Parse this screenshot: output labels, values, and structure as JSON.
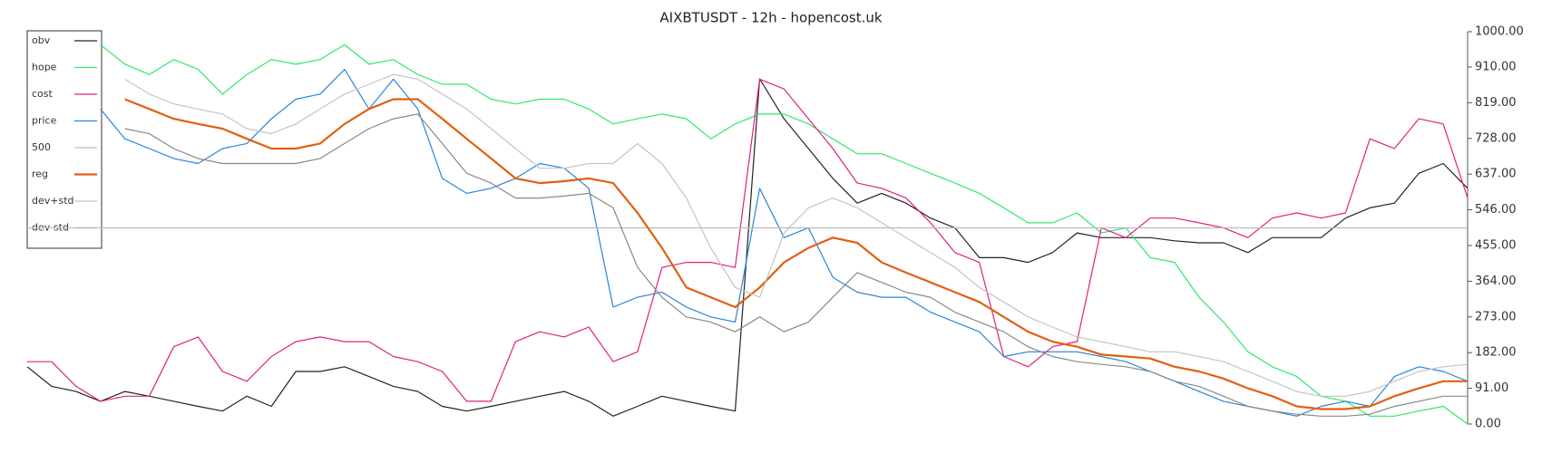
{
  "chart_data": {
    "type": "line",
    "title": "AIXBTUSDT - 12h - hopencost.uk",
    "ylim": [
      0,
      1000
    ],
    "yticks": [
      {
        "value": 0,
        "label": "0.00"
      },
      {
        "value": 91,
        "label": "91.00"
      },
      {
        "value": 182,
        "label": "182.00"
      },
      {
        "value": 273,
        "label": "273.00"
      },
      {
        "value": 364,
        "label": "364.00"
      },
      {
        "value": 455,
        "label": "455.00"
      },
      {
        "value": 546,
        "label": "546.00"
      },
      {
        "value": 637,
        "label": "637.00"
      },
      {
        "value": 728,
        "label": "728.00"
      },
      {
        "value": 819,
        "label": "819.00"
      },
      {
        "value": 910,
        "label": "910.00"
      },
      {
        "value": 1000,
        "label": "1000.00"
      }
    ],
    "legend": "upper-left",
    "series": [
      {
        "name": "obv",
        "color": "#222222",
        "width": 1.2,
        "values": [
          146,
          96,
          83,
          58,
          83,
          71,
          58,
          45,
          33,
          71,
          45,
          134,
          134,
          146,
          121,
          96,
          83,
          45,
          33,
          45,
          58,
          71,
          83,
          58,
          20,
          45,
          71,
          58,
          45,
          33,
          880,
          778,
          702,
          626,
          563,
          588,
          563,
          525,
          500,
          424,
          424,
          412,
          437,
          487,
          475,
          475,
          475,
          467,
          462,
          462,
          437,
          475,
          475,
          475,
          525,
          551,
          563,
          639,
          664,
          601
        ]
      },
      {
        "name": "hope",
        "color": "#2ee86a",
        "width": 1.2,
        "values": [
          null,
          null,
          null,
          967,
          917,
          891,
          929,
          904,
          841,
          891,
          929,
          917,
          929,
          967,
          917,
          929,
          891,
          866,
          866,
          828,
          816,
          828,
          828,
          803,
          765,
          778,
          790,
          778,
          727,
          765,
          790,
          790,
          765,
          727,
          689,
          689,
          664,
          639,
          614,
          588,
          551,
          513,
          513,
          538,
          487,
          500,
          424,
          412,
          323,
          260,
          184,
          146,
          121,
          71,
          58,
          20,
          20,
          33,
          45,
          0
        ]
      },
      {
        "name": "cost",
        "color": "#e0207f",
        "width": 1.2,
        "values": [
          159,
          159,
          96,
          58,
          71,
          71,
          197,
          222,
          134,
          109,
          172,
          210,
          222,
          210,
          210,
          172,
          159,
          134,
          58,
          58,
          210,
          235,
          222,
          247,
          159,
          184,
          399,
          412,
          412,
          399,
          879,
          854,
          778,
          702,
          614,
          601,
          576,
          513,
          437,
          412,
          172,
          146,
          197,
          210,
          500,
          475,
          525,
          525,
          513,
          500,
          475,
          525,
          538,
          525,
          538,
          727,
          702,
          778,
          765,
          576
        ]
      },
      {
        "name": "price",
        "color": "#2a84d8",
        "width": 1.2,
        "values": [
          null,
          null,
          null,
          803,
          727,
          702,
          677,
          664,
          702,
          715,
          778,
          828,
          841,
          904,
          803,
          879,
          803,
          626,
          588,
          601,
          626,
          664,
          652,
          601,
          298,
          323,
          336,
          298,
          273,
          260,
          601,
          475,
          500,
          374,
          336,
          323,
          323,
          285,
          260,
          235,
          172,
          184,
          184,
          184,
          172,
          159,
          134,
          109,
          83,
          58,
          45,
          33,
          20,
          45,
          58,
          45,
          121,
          146,
          134,
          109
        ]
      },
      {
        "name": "500",
        "color": "#bbbbbb",
        "width": 1.2,
        "values": [
          500,
          500,
          500,
          500,
          500,
          500,
          500,
          500,
          500,
          500,
          500,
          500,
          500,
          500,
          500,
          500,
          500,
          500,
          500,
          500,
          500,
          500,
          500,
          500,
          500,
          500,
          500,
          500,
          500,
          500,
          500,
          500,
          500,
          500,
          500,
          500,
          500,
          500,
          500,
          500,
          500,
          500,
          500,
          500,
          500,
          500,
          500,
          500,
          500,
          500,
          500,
          500,
          500,
          500,
          500,
          500,
          500,
          500,
          500,
          500
        ]
      },
      {
        "name": "reg",
        "color": "#e06010",
        "width": 2.2,
        "values": [
          null,
          null,
          null,
          null,
          828,
          803,
          778,
          765,
          753,
          727,
          702,
          702,
          715,
          765,
          803,
          828,
          828,
          778,
          727,
          677,
          626,
          614,
          619,
          626,
          614,
          538,
          449,
          348,
          323,
          298,
          348,
          412,
          449,
          475,
          462,
          412,
          386,
          361,
          336,
          311,
          273,
          235,
          210,
          197,
          177,
          172,
          167,
          146,
          134,
          116,
          91,
          71,
          45,
          38,
          38,
          45,
          71,
          91,
          109,
          109
        ]
      },
      {
        "name": "dev+std",
        "color": "#c4c4c4",
        "width": 1.2,
        "values": [
          null,
          null,
          null,
          null,
          879,
          841,
          816,
          803,
          790,
          753,
          740,
          765,
          803,
          841,
          866,
          891,
          879,
          841,
          803,
          753,
          702,
          652,
          652,
          664,
          664,
          715,
          664,
          576,
          449,
          348,
          323,
          487,
          551,
          576,
          551,
          513,
          475,
          437,
          399,
          348,
          311,
          273,
          247,
          222,
          210,
          197,
          184,
          184,
          172,
          159,
          134,
          109,
          83,
          71,
          71,
          83,
          109,
          134,
          146,
          152
        ]
      },
      {
        "name": "dev-std",
        "color": "#888888",
        "width": 1.2,
        "values": [
          null,
          null,
          null,
          null,
          753,
          740,
          702,
          677,
          664,
          664,
          664,
          664,
          677,
          715,
          753,
          778,
          790,
          715,
          639,
          614,
          576,
          576,
          581,
          588,
          551,
          399,
          323,
          273,
          260,
          235,
          273,
          235,
          260,
          323,
          386,
          361,
          336,
          323,
          285,
          260,
          235,
          197,
          172,
          159,
          152,
          146,
          134,
          109,
          96,
          71,
          45,
          33,
          25,
          20,
          20,
          25,
          45,
          58,
          71,
          71
        ]
      }
    ]
  }
}
